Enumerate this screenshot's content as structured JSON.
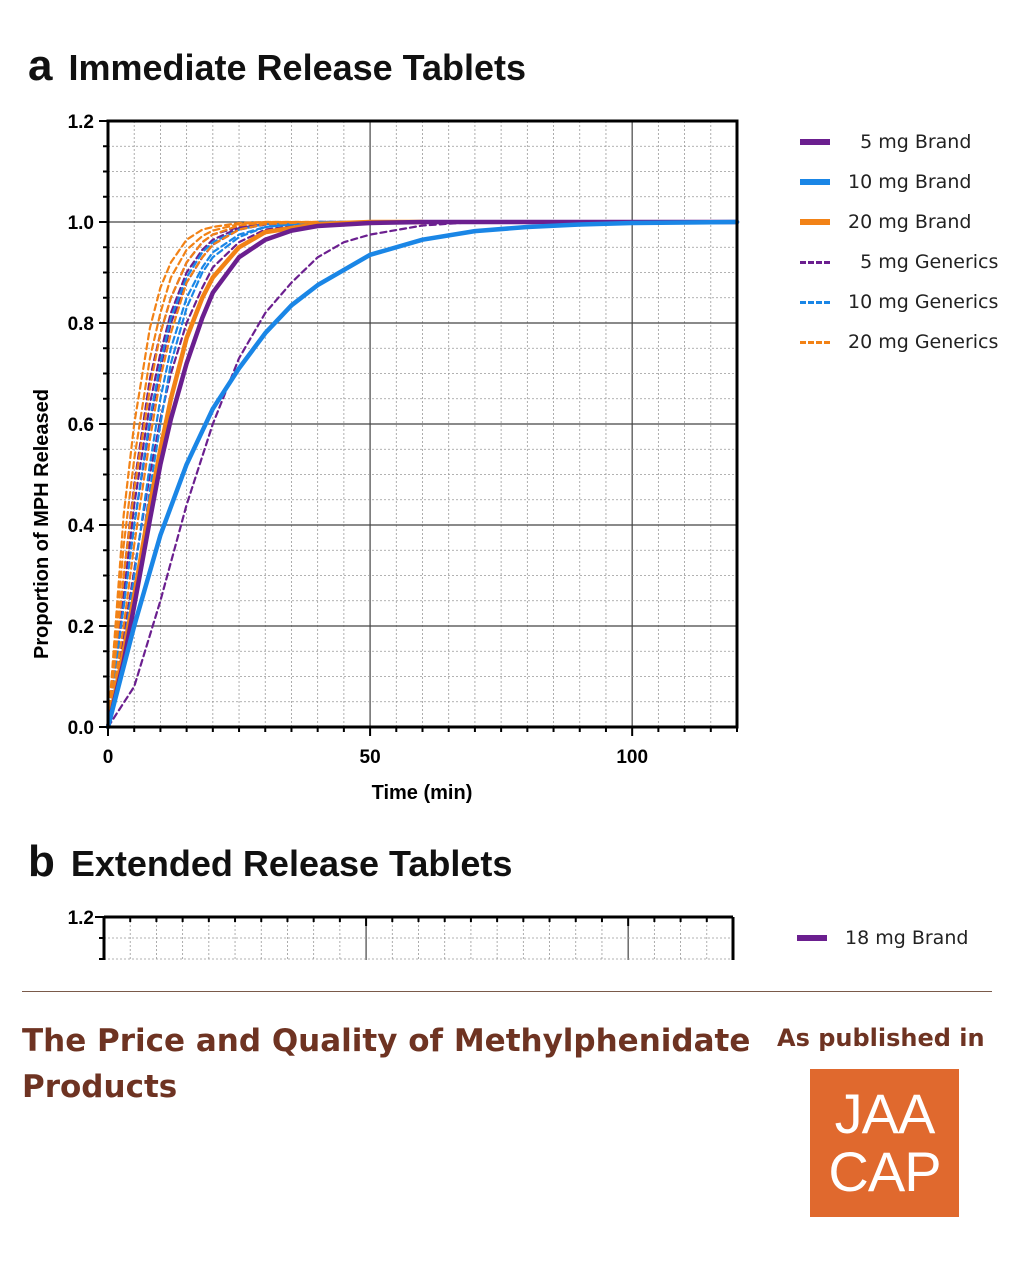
{
  "panel_a": {
    "letter": "a",
    "title": "Immediate Release Tablets"
  },
  "panel_b": {
    "letter": "b",
    "title": "Extended Release Tablets"
  },
  "chart_data": [
    {
      "type": "line",
      "title": "Immediate Release Tablets",
      "xlabel": "Time (min)",
      "ylabel": "Proportion of MPH Released",
      "xlim": [
        0,
        120
      ],
      "ylim": [
        0,
        1.2
      ],
      "xticks": [
        0,
        50,
        100
      ],
      "yticks": [
        0.0,
        0.2,
        0.4,
        0.6,
        0.8,
        1.0,
        1.2
      ],
      "grid": true,
      "legend_position": "right",
      "colors": {
        "5mg": "#6b1f8f",
        "10mg": "#1a86e6",
        "20mg": "#f28216"
      },
      "legend": [
        {
          "name": "  5 mg Brand",
          "color": "#6b1f8f",
          "style": "solid"
        },
        {
          "name": "10 mg Brand",
          "color": "#1a86e6",
          "style": "solid"
        },
        {
          "name": "20 mg Brand",
          "color": "#f28216",
          "style": "solid"
        },
        {
          "name": "  5 mg Generics",
          "color": "#6b1f8f",
          "style": "dashed"
        },
        {
          "name": "10 mg Generics",
          "color": "#1a86e6",
          "style": "dashed"
        },
        {
          "name": "20 mg Generics",
          "color": "#f28216",
          "style": "dashed"
        }
      ],
      "series": [
        {
          "group": "5 mg Generics",
          "color": "#6b1f8f",
          "style": "dashed",
          "x": [
            0,
            3,
            5,
            8,
            10,
            12,
            15,
            18,
            20,
            25,
            30,
            40,
            50,
            60
          ],
          "y": [
            0,
            0.3,
            0.48,
            0.69,
            0.78,
            0.85,
            0.92,
            0.96,
            0.975,
            0.99,
            0.997,
            1.0,
            1.0,
            1.0
          ]
        },
        {
          "group": "5 mg Generics",
          "color": "#6b1f8f",
          "style": "dashed",
          "x": [
            0,
            3,
            5,
            8,
            10,
            12,
            15,
            18,
            20,
            25,
            30,
            40,
            50,
            60
          ],
          "y": [
            0,
            0.26,
            0.44,
            0.64,
            0.74,
            0.82,
            0.9,
            0.945,
            0.965,
            0.988,
            0.996,
            1.0,
            1.0,
            1.0
          ]
        },
        {
          "group": "5 mg Generics",
          "color": "#6b1f8f",
          "style": "dashed",
          "x": [
            0,
            3,
            5,
            8,
            10,
            12,
            15,
            18,
            20,
            25,
            30,
            40,
            50,
            60
          ],
          "y": [
            0,
            0.24,
            0.4,
            0.6,
            0.71,
            0.8,
            0.88,
            0.93,
            0.955,
            0.985,
            0.995,
            1.0,
            1.0,
            1.0
          ]
        },
        {
          "group": "5 mg Generics",
          "color": "#6b1f8f",
          "style": "dashed",
          "x": [
            0,
            3,
            5,
            8,
            10,
            12,
            15,
            18,
            20,
            25,
            30,
            40,
            50,
            60
          ],
          "y": [
            0,
            0.18,
            0.31,
            0.5,
            0.61,
            0.7,
            0.8,
            0.87,
            0.91,
            0.96,
            0.985,
            0.998,
            1.0,
            1.0
          ]
        },
        {
          "group": "5 mg Generics",
          "color": "#6b1f8f",
          "style": "dashed",
          "x": [
            0,
            5,
            10,
            15,
            20,
            25,
            30,
            35,
            40,
            45,
            50,
            60,
            70
          ],
          "y": [
            0,
            0.08,
            0.25,
            0.44,
            0.6,
            0.73,
            0.82,
            0.88,
            0.93,
            0.96,
            0.975,
            0.993,
            1.0
          ]
        },
        {
          "group": "10 mg Generics",
          "color": "#1a86e6",
          "style": "dashed",
          "x": [
            0,
            3,
            5,
            8,
            10,
            12,
            15,
            18,
            20,
            25,
            30,
            40,
            50
          ],
          "y": [
            0,
            0.24,
            0.4,
            0.61,
            0.72,
            0.81,
            0.89,
            0.94,
            0.96,
            0.985,
            0.996,
            1.0,
            1.0
          ]
        },
        {
          "group": "10 mg Generics",
          "color": "#1a86e6",
          "style": "dashed",
          "x": [
            0,
            3,
            5,
            8,
            10,
            12,
            15,
            18,
            20,
            25,
            30,
            40,
            50
          ],
          "y": [
            0,
            0.16,
            0.3,
            0.52,
            0.65,
            0.75,
            0.85,
            0.91,
            0.94,
            0.975,
            0.99,
            1.0,
            1.0
          ]
        },
        {
          "group": "10 mg Generics",
          "color": "#1a86e6",
          "style": "dashed",
          "x": [
            0,
            3,
            5,
            8,
            10,
            12,
            15,
            18,
            20,
            25,
            30,
            40,
            50
          ],
          "y": [
            0,
            0.12,
            0.25,
            0.47,
            0.6,
            0.72,
            0.83,
            0.9,
            0.93,
            0.97,
            0.99,
            1.0,
            1.0
          ]
        },
        {
          "group": "20 mg Generics",
          "color": "#f28216",
          "style": "dashed",
          "x": [
            0,
            3,
            5,
            8,
            10,
            12,
            15,
            18,
            20,
            25,
            30,
            40
          ],
          "y": [
            0,
            0.42,
            0.6,
            0.79,
            0.87,
            0.92,
            0.965,
            0.985,
            0.99,
            0.998,
            1.0,
            1.0
          ]
        },
        {
          "group": "20 mg Generics",
          "color": "#f28216",
          "style": "dashed",
          "x": [
            0,
            3,
            5,
            8,
            10,
            12,
            15,
            18,
            20,
            25,
            30,
            40
          ],
          "y": [
            0,
            0.36,
            0.53,
            0.73,
            0.82,
            0.89,
            0.945,
            0.972,
            0.983,
            0.996,
            1.0,
            1.0
          ]
        },
        {
          "group": "20 mg Generics",
          "color": "#f28216",
          "style": "dashed",
          "x": [
            0,
            3,
            5,
            8,
            10,
            12,
            15,
            18,
            20,
            25,
            30,
            40
          ],
          "y": [
            0,
            0.3,
            0.47,
            0.67,
            0.78,
            0.85,
            0.92,
            0.96,
            0.975,
            0.993,
            0.999,
            1.0
          ]
        },
        {
          "group": "20 mg Generics",
          "color": "#f28216",
          "style": "dashed",
          "x": [
            0,
            3,
            5,
            8,
            10,
            12,
            15,
            18,
            20,
            25,
            30,
            40
          ],
          "y": [
            0,
            0.2,
            0.36,
            0.57,
            0.69,
            0.78,
            0.88,
            0.93,
            0.955,
            0.985,
            0.996,
            1.0
          ]
        },
        {
          "group": "20 mg Brand",
          "color": "#f28216",
          "style": "solid",
          "x": [
            0,
            3,
            5,
            8,
            10,
            12,
            15,
            18,
            20,
            25,
            30,
            40,
            50,
            60
          ],
          "y": [
            0,
            0.15,
            0.26,
            0.44,
            0.55,
            0.65,
            0.77,
            0.85,
            0.89,
            0.95,
            0.98,
            0.996,
            1.0,
            1.0
          ]
        },
        {
          "group": "5 mg Brand",
          "color": "#6b1f8f",
          "style": "solid",
          "x": [
            0,
            3,
            5,
            8,
            10,
            12,
            15,
            18,
            20,
            25,
            30,
            35,
            40,
            50,
            60,
            80,
            120
          ],
          "y": [
            0,
            0.13,
            0.24,
            0.41,
            0.52,
            0.61,
            0.72,
            0.81,
            0.86,
            0.93,
            0.965,
            0.983,
            0.992,
            0.998,
            1.0,
            1.0,
            1.0
          ]
        },
        {
          "group": "10 mg Brand",
          "color": "#1a86e6",
          "style": "solid",
          "x": [
            0,
            5,
            10,
            15,
            20,
            25,
            30,
            35,
            40,
            50,
            60,
            70,
            80,
            90,
            100,
            120
          ],
          "y": [
            0,
            0.2,
            0.38,
            0.52,
            0.63,
            0.71,
            0.78,
            0.835,
            0.875,
            0.935,
            0.965,
            0.982,
            0.99,
            0.995,
            0.998,
            1.0
          ]
        }
      ]
    },
    {
      "type": "line",
      "title": "Extended Release Tablets",
      "xlim": [
        0,
        120
      ],
      "yticks": [
        1.2
      ],
      "grid": true,
      "legend_position": "right",
      "legend": [
        {
          "name": "18 mg Brand",
          "color": "#6b1f8f",
          "style": "solid"
        }
      ],
      "series": []
    }
  ],
  "footer": {
    "title": "The Price and Quality of Methylphenidate Products",
    "published_label": "As published in",
    "logo_line1": "JAA",
    "logo_line2": "CAP"
  }
}
